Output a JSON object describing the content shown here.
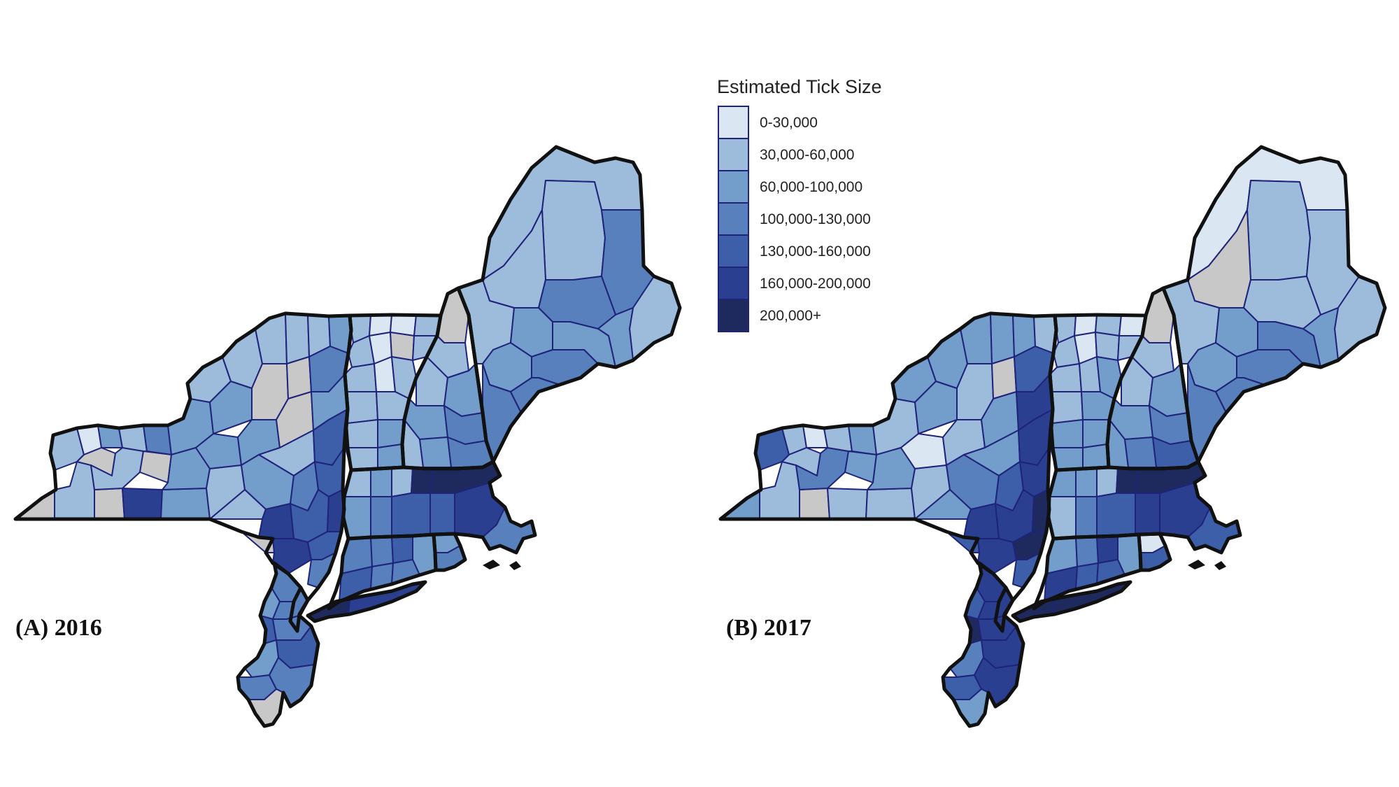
{
  "legend": {
    "title": "Estimated Tick Size",
    "classes": [
      {
        "label": "0-30,000",
        "color": "#dbe6f3"
      },
      {
        "label": "30,000-60,000",
        "color": "#9dbbdb"
      },
      {
        "label": "60,000-100,000",
        "color": "#739ecc"
      },
      {
        "label": "100,000-130,000",
        "color": "#5780bd"
      },
      {
        "label": "130,000-160,000",
        "color": "#3d5ea8"
      },
      {
        "label": "160,000-200,000",
        "color": "#2a3f8f"
      },
      {
        "label": "200,000+",
        "color": "#1e2a5e"
      }
    ],
    "no_data_color": "#c8c8c8"
  },
  "panels": [
    {
      "label": "(A) 2016"
    },
    {
      "label": "(B) 2017"
    }
  ]
}
